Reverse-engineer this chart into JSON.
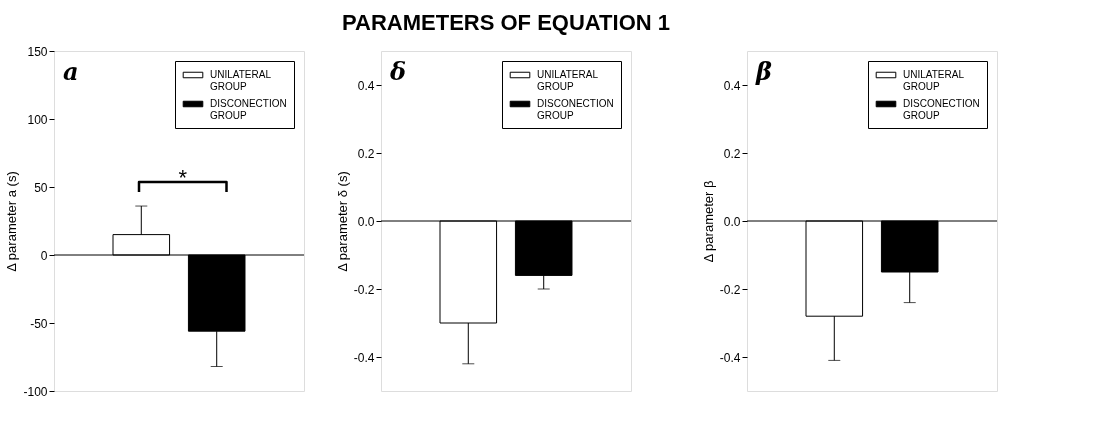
{
  "chart_data": [
    {
      "type": "bar",
      "ylabel": "Δ parameter a (s)",
      "categories": [
        null
      ],
      "ylim": [
        -100,
        150
      ],
      "yticks": [
        -100,
        -50,
        0,
        50,
        100,
        150
      ],
      "legend": "top right",
      "tick_labels": "y",
      "annotations": [
        "a",
        "*"
      ],
      "ref_lines": [
        {
          "axis": "y",
          "value": 0
        }
      ],
      "series": [
        {
          "name": "UNILATERAL GROUP",
          "color": "#ffffff",
          "values": [
            15
          ],
          "errors": [
            [
              15,
              36
            ]
          ]
        },
        {
          "name": "DISCONECTION GROUP",
          "color": "#000000",
          "values": [
            -56
          ],
          "errors": [
            [
              -82,
              -56
            ]
          ]
        }
      ]
    },
    {
      "type": "bar",
      "title": "PARAMETERS OF EQUATION 1",
      "ylabel": "Δ parameter δ (s)",
      "categories": [
        null
      ],
      "ylim": [
        -0.5,
        0.5
      ],
      "yticks": [
        -0.4,
        -0.2,
        {
          "value": 0,
          "label": "0.0"
        },
        0.2,
        0.4
      ],
      "legend": "top right",
      "tick_labels": "y",
      "annotations": [
        "δ"
      ],
      "ref_lines": [
        {
          "axis": "y",
          "value": 0
        }
      ],
      "series": [
        {
          "name": "UNILATERAL GROUP",
          "color": "#ffffff",
          "values": [
            -0.3
          ],
          "errors": [
            [
              -0.42,
              -0.3
            ]
          ]
        },
        {
          "name": "DISCONECTION GROUP",
          "color": "#000000",
          "values": [
            -0.16
          ],
          "errors": [
            [
              -0.2,
              -0.16
            ]
          ]
        }
      ]
    },
    {
      "type": "bar",
      "ylabel": "Δ parameter β",
      "categories": [
        null
      ],
      "ylim": [
        -0.5,
        0.5
      ],
      "yticks": [
        -0.4,
        -0.2,
        {
          "value": 0,
          "label": "0.0"
        },
        0.2,
        0.4
      ],
      "legend": "top right",
      "tick_labels": "y",
      "annotations": [
        "β"
      ],
      "ref_lines": [
        {
          "axis": "y",
          "value": 0
        }
      ],
      "series": [
        {
          "name": "UNILATERAL GROUP",
          "color": "#ffffff",
          "values": [
            -0.28
          ],
          "errors": [
            [
              -0.41,
              -0.28
            ]
          ]
        },
        {
          "name": "DISCONECTION GROUP",
          "color": "#000000",
          "values": [
            -0.15
          ],
          "errors": [
            [
              -0.24,
              -0.15
            ]
          ]
        }
      ]
    }
  ]
}
